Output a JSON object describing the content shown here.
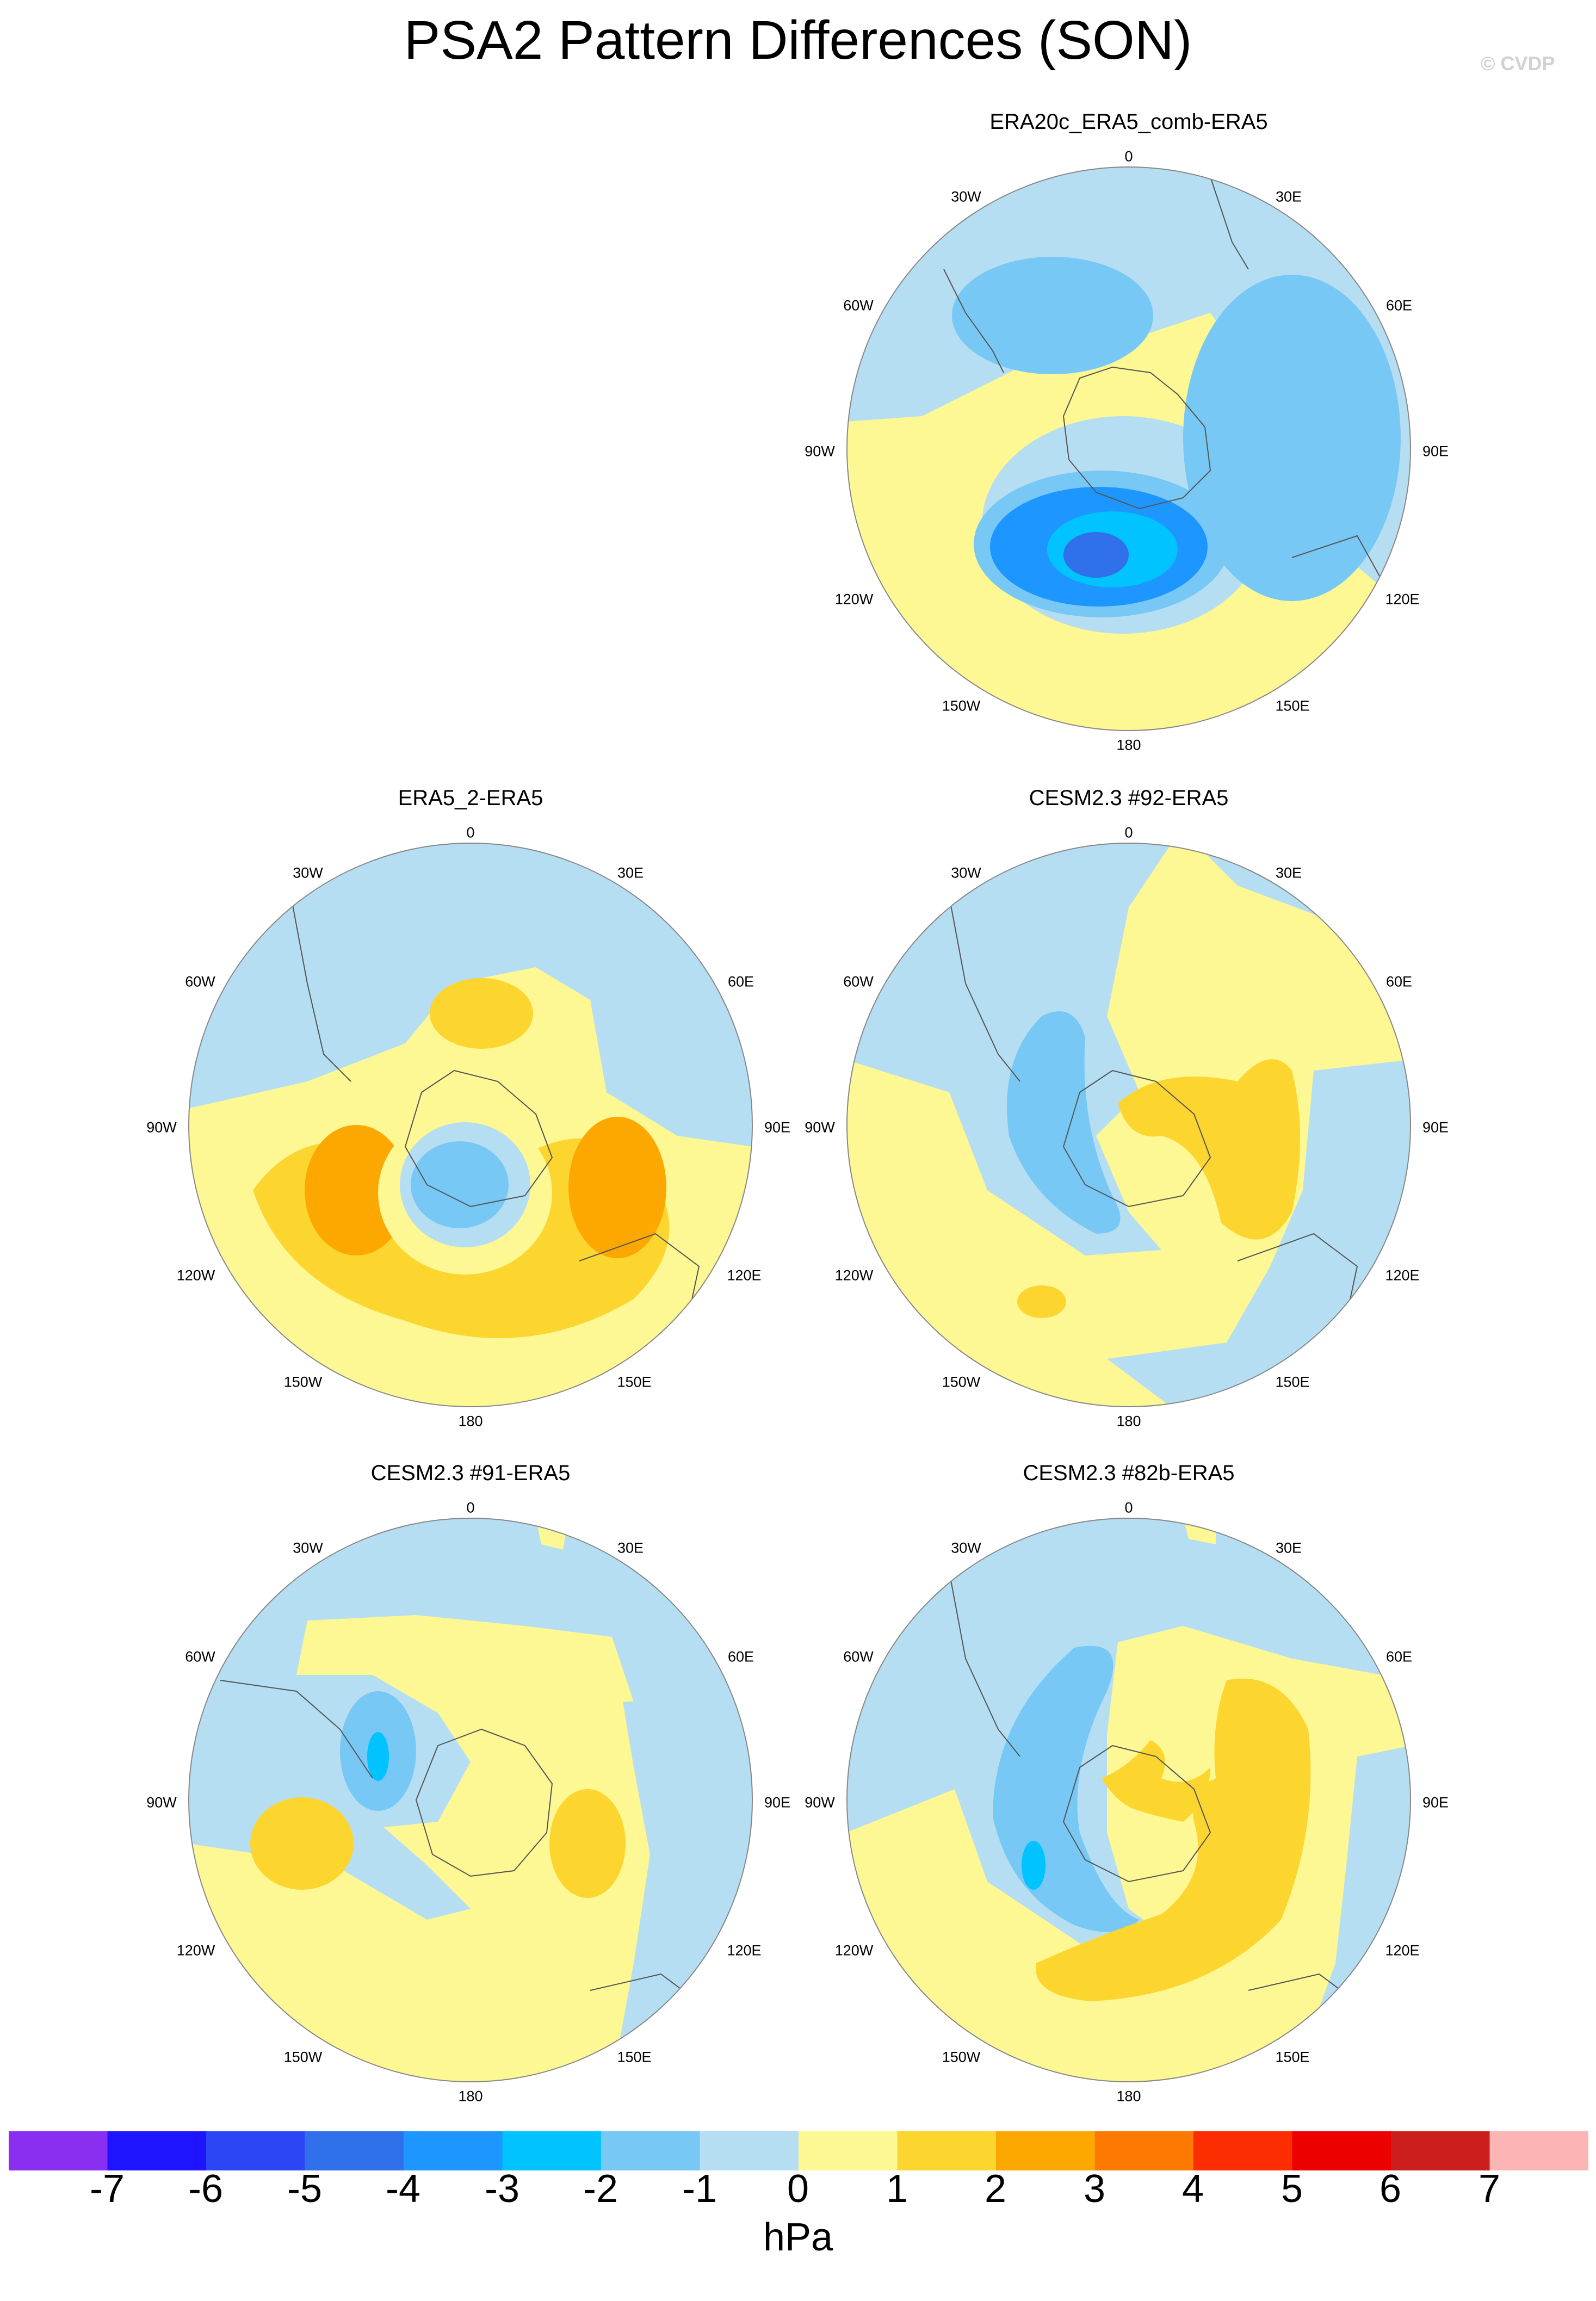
{
  "title": "PSA2 Pattern Differences (SON)",
  "copyright": "© CVDP",
  "unit": "hPa",
  "colorbar": {
    "levels": [
      "-7",
      "-6",
      "-5",
      "-4",
      "-3",
      "-2",
      "-1",
      "0",
      "1",
      "2",
      "3",
      "4",
      "5",
      "6",
      "7"
    ],
    "colors": [
      "#8a2ff0",
      "#1e14ff",
      "#2d46f5",
      "#3070ea",
      "#1e96ff",
      "#00c3ff",
      "#78c8f5",
      "#b6def3",
      "#fdf794",
      "#fcd62e",
      "#fca800",
      "#fc7a00",
      "#fc2d00",
      "#ec0000",
      "#cd1e1e",
      "#fdb4b4"
    ]
  },
  "lon_labels": [
    "0",
    "30E",
    "60E",
    "90E",
    "120E",
    "150E",
    "180",
    "150W",
    "120W",
    "90W",
    "60W",
    "30W"
  ],
  "panels": [
    {
      "id": "era20c",
      "title": "ERA20c_ERA5_comb-ERA5"
    },
    {
      "id": "era5_2",
      "title": "ERA5_2-ERA5"
    },
    {
      "id": "cesm92",
      "title": "CESM2.3 #92-ERA5"
    },
    {
      "id": "cesm91",
      "title": "CESM2.3 #91-ERA5"
    },
    {
      "id": "cesm82b",
      "title": "CESM2.3 #82b-ERA5"
    }
  ]
}
